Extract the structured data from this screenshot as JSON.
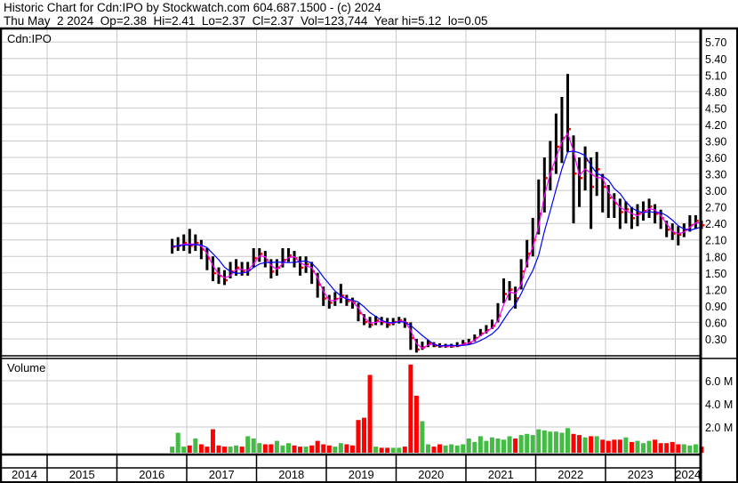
{
  "header": {
    "title": "Historic Chart for Cdn:IPO by Stockwatch.com 604.687.1500 - (c) 2024",
    "quote": "Thu May  2 2024  Op=2.38  Hi=2.41  Lo=2.37  Cl=2.37  Vol=123,744  Year hi=5.12  lo=0.05"
  },
  "colors": {
    "price_bar": "#000000",
    "close_mark": "#ff0000",
    "ma_short": "#ff00ff",
    "ma_long": "#0000ff",
    "vol_up": "#44bb44",
    "vol_down": "#ff0000",
    "grid": "#c8c8c8"
  },
  "chart_data": [
    {
      "type": "line",
      "panel_label": "Cdn:IPO",
      "ylim": [
        0,
        5.9
      ],
      "y_ticks": [
        "0.30",
        "0.60",
        "0.90",
        "1.20",
        "1.50",
        "1.80",
        "2.10",
        "2.40",
        "2.70",
        "3.00",
        "3.30",
        "3.60",
        "3.90",
        "4.20",
        "4.50",
        "4.80",
        "5.10",
        "5.40",
        "5.70"
      ],
      "x_ticks": [
        "2014",
        "2015",
        "2016",
        "2017",
        "2018",
        "2019",
        "2020",
        "2021",
        "2022",
        "2023",
        "2024"
      ],
      "grid": true,
      "start_month": "2016-10",
      "close": [
        1.98,
        2.0,
        2.05,
        2.0,
        2.05,
        1.93,
        1.77,
        1.5,
        1.45,
        1.37,
        1.53,
        1.6,
        1.53,
        1.56,
        1.77,
        1.85,
        1.74,
        1.53,
        1.6,
        1.74,
        1.82,
        1.77,
        1.6,
        1.66,
        1.53,
        1.29,
        1.04,
        0.96,
        1.03,
        1.09,
        0.99,
        0.96,
        0.77,
        0.61,
        0.56,
        0.64,
        0.61,
        0.56,
        0.61,
        0.64,
        0.59,
        0.32,
        0.11,
        0.15,
        0.23,
        0.18,
        0.17,
        0.17,
        0.17,
        0.18,
        0.22,
        0.23,
        0.32,
        0.4,
        0.46,
        0.54,
        0.72,
        1.12,
        1.2,
        1.04,
        1.53,
        1.85,
        2.1,
        2.58,
        3.23,
        3.39,
        3.8,
        3.96,
        4.12,
        3.31,
        3.23,
        3.55,
        3.07,
        3.39,
        3.07,
        2.87,
        2.77,
        2.61,
        2.66,
        2.5,
        2.58,
        2.63,
        2.71,
        2.58,
        2.5,
        2.29,
        2.22,
        2.2,
        2.29,
        2.37,
        2.45,
        2.37
      ],
      "high": [
        2.12,
        2.15,
        2.2,
        2.3,
        2.2,
        2.1,
        1.95,
        1.8,
        1.6,
        1.55,
        1.7,
        1.75,
        1.7,
        1.7,
        1.95,
        1.95,
        1.9,
        1.75,
        1.75,
        1.95,
        1.95,
        1.9,
        1.8,
        1.8,
        1.7,
        1.5,
        1.25,
        1.1,
        1.15,
        1.3,
        1.1,
        1.05,
        0.95,
        0.75,
        0.7,
        0.72,
        0.7,
        0.68,
        0.68,
        0.7,
        0.68,
        0.6,
        0.3,
        0.25,
        0.28,
        0.24,
        0.22,
        0.21,
        0.21,
        0.24,
        0.28,
        0.3,
        0.38,
        0.48,
        0.55,
        0.65,
        0.95,
        1.4,
        1.35,
        1.25,
        1.75,
        2.1,
        2.5,
        3.2,
        3.6,
        3.9,
        4.4,
        4.7,
        5.12,
        4.0,
        3.6,
        3.8,
        3.6,
        3.7,
        3.3,
        3.1,
        2.95,
        2.85,
        2.8,
        2.7,
        2.75,
        2.8,
        2.85,
        2.75,
        2.65,
        2.45,
        2.4,
        2.35,
        2.4,
        2.55,
        2.55,
        2.45
      ],
      "low": [
        1.85,
        1.9,
        1.9,
        1.85,
        1.9,
        1.75,
        1.55,
        1.35,
        1.3,
        1.28,
        1.4,
        1.45,
        1.45,
        1.45,
        1.6,
        1.7,
        1.6,
        1.4,
        1.45,
        1.6,
        1.7,
        1.6,
        1.45,
        1.5,
        1.3,
        1.05,
        0.9,
        0.85,
        0.9,
        0.95,
        0.9,
        0.85,
        0.62,
        0.55,
        0.5,
        0.55,
        0.55,
        0.5,
        0.55,
        0.58,
        0.5,
        0.1,
        0.05,
        0.1,
        0.15,
        0.15,
        0.14,
        0.14,
        0.14,
        0.15,
        0.18,
        0.2,
        0.25,
        0.35,
        0.4,
        0.48,
        0.6,
        0.95,
        1.0,
        0.85,
        1.2,
        1.6,
        1.8,
        2.2,
        2.6,
        3.0,
        3.3,
        3.5,
        3.7,
        2.4,
        2.7,
        3.0,
        2.3,
        2.9,
        2.6,
        2.5,
        2.5,
        2.3,
        2.4,
        2.3,
        2.35,
        2.45,
        2.5,
        2.4,
        2.3,
        2.15,
        2.1,
        2.0,
        2.15,
        2.25,
        2.3,
        2.3
      ]
    },
    {
      "type": "bar",
      "panel_label": "Volume",
      "ylim": [
        0,
        8
      ],
      "y_ticks": [
        "2.0 M",
        "4.0 M",
        "6.0 M"
      ],
      "y_tick_values": [
        2,
        4,
        6
      ],
      "unit": "M",
      "start_month": "2016-10",
      "values": [
        0.3,
        1.5,
        0.3,
        0.4,
        1.0,
        0.5,
        0.3,
        1.8,
        0.4,
        0.3,
        0.3,
        0.4,
        0.3,
        1.2,
        1.0,
        0.6,
        0.5,
        0.5,
        0.8,
        0.4,
        0.6,
        0.4,
        0.3,
        0.3,
        0.4,
        0.8,
        0.5,
        0.4,
        0.3,
        0.6,
        0.5,
        0.4,
        2.6,
        2.8,
        6.5,
        0.3,
        0.2,
        0.2,
        0.2,
        0.2,
        0.3,
        7.4,
        4.7,
        2.5,
        0.5,
        0.3,
        0.5,
        0.4,
        0.5,
        0.4,
        0.5,
        1.0,
        0.7,
        1.2,
        0.8,
        1.1,
        1.0,
        0.9,
        1.2,
        1.0,
        1.3,
        1.4,
        1.3,
        1.8,
        1.7,
        1.6,
        1.6,
        1.5,
        1.9,
        1.4,
        1.3,
        1.1,
        1.2,
        1.2,
        0.9,
        0.8,
        0.9,
        0.9,
        1.1,
        0.7,
        0.8,
        0.6,
        0.8,
        0.9,
        0.6,
        0.6,
        0.7,
        0.5,
        0.5,
        0.4,
        0.5,
        0.3
      ]
    }
  ]
}
